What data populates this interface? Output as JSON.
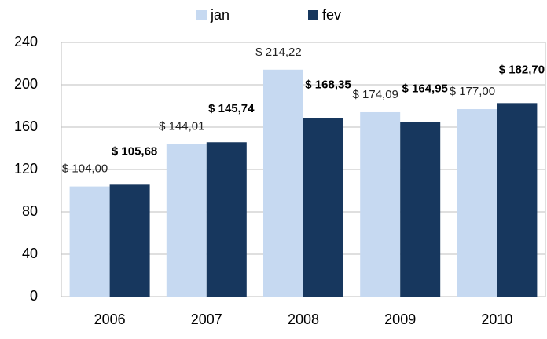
{
  "chart_data": {
    "type": "bar",
    "categories": [
      "2006",
      "2007",
      "2008",
      "2009",
      "2010"
    ],
    "series": [
      {
        "name": "jan",
        "color": "#c6d9f1",
        "values": [
          104.0,
          144.01,
          214.22,
          174.09,
          177.0
        ],
        "value_labels": [
          "$ 104,00",
          "$ 144,01",
          "$ 214,22",
          "$ 174,09",
          "$ 177,00"
        ]
      },
      {
        "name": "fev",
        "color": "#17375e",
        "values": [
          105.68,
          145.74,
          168.35,
          164.95,
          182.7
        ],
        "value_labels": [
          "$ 105,68",
          "$ 145,74",
          "$ 168,35",
          "$ 164,95",
          "$ 182,70"
        ]
      }
    ],
    "ylim": [
      0,
      240
    ],
    "yticks": [
      0,
      40,
      80,
      120,
      160,
      200,
      240
    ],
    "grid": true,
    "legend": "top"
  }
}
